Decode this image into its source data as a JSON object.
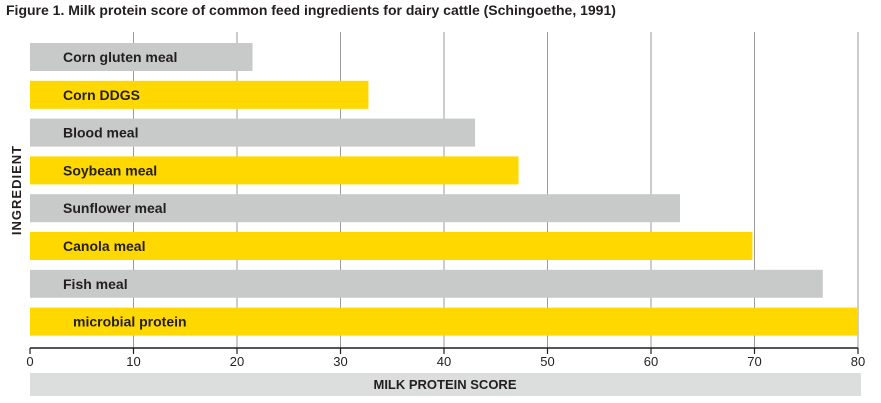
{
  "chart_data": {
    "type": "bar",
    "orientation": "horizontal",
    "title": "Figure 1. Milk protein score of common feed ingredients for dairy cattle (Schingoethe, 1991)",
    "xlabel": "MILK PROTEIN SCORE",
    "ylabel": "INGREDIENT",
    "xlim": [
      0,
      80
    ],
    "xticks": [
      0,
      10,
      20,
      30,
      40,
      50,
      60,
      70,
      80
    ],
    "grid": true,
    "categories": [
      "Corn gluten meal",
      "Corn DDGS",
      "Blood meal",
      "Soybean meal",
      "Sunflower meal",
      "Canola meal",
      "Fish meal",
      "microbial protein"
    ],
    "values": [
      21.5,
      32.7,
      43,
      47.2,
      62.8,
      69.8,
      76.6,
      80
    ],
    "bar_colors": [
      "#c8c9c9",
      "#ffd800",
      "#c8c9c9",
      "#ffd800",
      "#c8c9c9",
      "#ffd800",
      "#c8c9c9",
      "#ffd800"
    ]
  }
}
